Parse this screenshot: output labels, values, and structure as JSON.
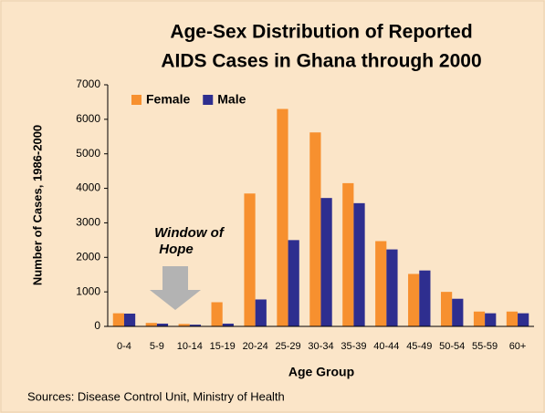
{
  "chart_data": {
    "type": "bar",
    "title": [
      "Age-Sex Distribution of Reported",
      "AIDS Cases in Ghana through 2000"
    ],
    "y_label": "Number of Cases, 1986-2000",
    "x_label": "Age Group",
    "source": "Sources: Disease Control Unit, Ministry of Health",
    "annotation": [
      "Window of",
      "Hope"
    ],
    "categories": [
      "0-4",
      "5-9",
      "10-14",
      "15-19",
      "20-24",
      "25-29",
      "30-34",
      "35-39",
      "40-44",
      "45-49",
      "50-54",
      "55-59",
      "60+"
    ],
    "series": [
      {
        "name": "Female",
        "color": "#f7902f",
        "values": [
          380,
          100,
          70,
          700,
          3850,
          6300,
          5620,
          4150,
          2470,
          1520,
          1000,
          430,
          430
        ]
      },
      {
        "name": "Male",
        "color": "#2e2e8f",
        "values": [
          370,
          80,
          50,
          80,
          780,
          2500,
          3720,
          3570,
          2230,
          1620,
          800,
          380,
          380
        ]
      }
    ],
    "ylim": [
      0,
      7000
    ],
    "yticks": [
      0,
      1000,
      2000,
      3000,
      4000,
      5000,
      6000,
      7000
    ],
    "grid": false,
    "legend": "top-left"
  }
}
